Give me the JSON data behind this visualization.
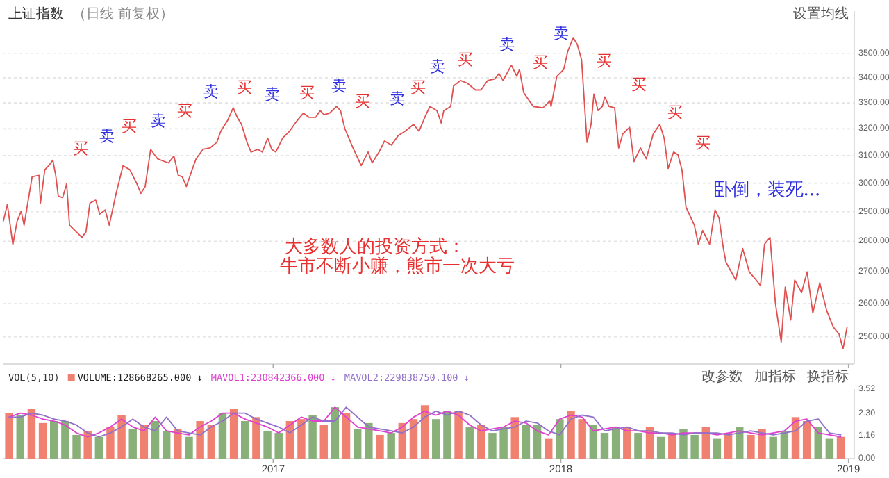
{
  "chart_data": [
    {
      "type": "line",
      "title": "上证指数",
      "subtitle": "（日线 前复权）",
      "log": true,
      "grid": "y",
      "tick_labels": "y",
      "xlim": [
        2016.06,
        2019.02
      ],
      "xticks": [
        2017,
        2018,
        2019
      ],
      "ylim": [
        2420,
        3680
      ],
      "yticks": [
        {
          "value": 2500,
          "label": "2500.00"
        },
        {
          "value": 2600,
          "label": "2600.00"
        },
        {
          "value": 2700,
          "label": "2700.00"
        },
        {
          "value": 2800,
          "label": "2800.00"
        },
        {
          "value": 2900,
          "label": "2900.00"
        },
        {
          "value": 3000,
          "label": "3000.00"
        },
        {
          "value": 3100,
          "label": "3100.00"
        },
        {
          "value": 3200,
          "label": "3200.00"
        },
        {
          "value": 3300,
          "label": "3300.00"
        },
        {
          "value": 3400,
          "label": "3400.00"
        },
        {
          "value": 3500,
          "label": "3500.00"
        }
      ],
      "series": [
        {
          "color": "#e05050",
          "x": [
            2016.062,
            2016.076,
            2016.095,
            2016.11,
            2016.124,
            2016.134,
            2016.162,
            2016.186,
            2016.191,
            2016.206,
            2016.22,
            2016.234,
            2016.244,
            2016.253,
            2016.268,
            2016.282,
            2016.292,
            2016.316,
            2016.335,
            2016.349,
            2016.363,
            2016.383,
            2016.397,
            2016.416,
            2016.43,
            2016.454,
            2016.478,
            2016.502,
            2016.526,
            2016.54,
            2016.555,
            2016.574,
            2016.598,
            2016.622,
            2016.636,
            2016.655,
            2016.67,
            2016.684,
            2016.698,
            2016.718,
            2016.732,
            2016.756,
            2016.78,
            2016.804,
            2016.818,
            2016.842,
            2016.861,
            2016.875,
            2016.89,
            2016.909,
            2016.923,
            2016.947,
            2016.962,
            2016.981,
            2016.995,
            2017.009,
            2017.033,
            2017.057,
            2017.081,
            2017.105,
            2017.124,
            2017.148,
            2017.163,
            2017.177,
            2017.196,
            2017.22,
            2017.234,
            2017.249,
            2017.273,
            2017.306,
            2017.33,
            2017.344,
            2017.368,
            2017.387,
            2017.411,
            2017.435,
            2017.459,
            2017.488,
            2017.507,
            2017.531,
            2017.545,
            2017.569,
            2017.584,
            2017.593,
            2017.617,
            2017.627,
            2017.651,
            2017.675,
            2017.703,
            2017.722,
            2017.746,
            2017.77,
            2017.785,
            2017.799,
            2017.828,
            2017.847,
            2017.856,
            2017.871,
            2017.904,
            2017.938,
            2017.962,
            2017.966,
            2017.986,
            2018.01,
            2018.024,
            2018.043,
            2018.057,
            2018.072,
            2018.091,
            2018.105,
            2018.115,
            2018.129,
            2018.144,
            2018.153,
            2018.167,
            2018.187,
            2018.201,
            2018.215,
            2018.239,
            2018.254,
            2018.277,
            2018.297,
            2018.321,
            2018.344,
            2018.359,
            2018.373,
            2018.392,
            2018.407,
            2018.421,
            2018.435,
            2018.464,
            2018.478,
            2018.493,
            2018.517,
            2018.536,
            2018.55,
            2018.565,
            2018.574,
            2018.608,
            2018.632,
            2018.655,
            2018.679,
            2018.694,
            2018.708,
            2018.727,
            2018.746,
            2018.766,
            2018.78,
            2018.799,
            2018.813,
            2018.837,
            2018.856,
            2018.876,
            2018.9,
            2018.924,
            2018.947,
            2018.967,
            2018.981,
            2018.995
          ],
          "values": [
            2868,
            2925,
            2789,
            2868,
            2902,
            2854,
            3023,
            3028,
            2930,
            3048,
            3063,
            3083,
            3028,
            2954,
            2949,
            2998,
            2854,
            2831,
            2813,
            2831,
            2930,
            2940,
            2892,
            2906,
            2854,
            2964,
            3063,
            3048,
            2998,
            2964,
            2988,
            3123,
            3088,
            3078,
            3073,
            3098,
            3028,
            3023,
            2988,
            3048,
            3088,
            3123,
            3128,
            3149,
            3191,
            3233,
            3281,
            3244,
            3217,
            3149,
            3113,
            3123,
            3113,
            3165,
            3123,
            3113,
            3165,
            3191,
            3228,
            3260,
            3244,
            3244,
            3270,
            3254,
            3260,
            3286,
            3270,
            3201,
            3139,
            3063,
            3113,
            3073,
            3113,
            3154,
            3139,
            3175,
            3191,
            3217,
            3191,
            3254,
            3286,
            3270,
            3222,
            3270,
            3286,
            3367,
            3389,
            3378,
            3351,
            3351,
            3389,
            3395,
            3417,
            3389,
            3451,
            3406,
            3434,
            3340,
            3286,
            3281,
            3308,
            3286,
            3406,
            3434,
            3508,
            3566,
            3537,
            3474,
            3149,
            3217,
            3335,
            3270,
            3286,
            3324,
            3286,
            3281,
            3128,
            3180,
            3206,
            3078,
            3128,
            3088,
            3180,
            3217,
            3165,
            3053,
            3113,
            3103,
            3048,
            2916,
            2854,
            2790,
            2836,
            2790,
            2906,
            2878,
            2776,
            2731,
            2674,
            2776,
            2700,
            2674,
            2656,
            2790,
            2813,
            2600,
            2484,
            2652,
            2550,
            2674,
            2634,
            2700,
            2571,
            2665,
            2579,
            2529,
            2508,
            2464,
            2529
          ]
        }
      ],
      "annotations": [
        "设置均线",
        "买",
        "卖",
        "买",
        "卖",
        "买",
        "卖",
        "买",
        "卖",
        "买",
        "卖",
        "买",
        "卖",
        "买",
        "卖",
        "买",
        "卖",
        "买",
        "卖",
        "买",
        "买",
        "买",
        "买",
        "大多数人的投资方式：",
        "牛市不断小赚，熊市一次大亏",
        "卧倒，装死..."
      ]
    },
    {
      "type": "bar",
      "title": "VOL(5,10)",
      "legend": "top left",
      "xlim": [
        2016.06,
        2019.02
      ],
      "xticks": [
        2017,
        2018,
        2019
      ],
      "ylim": [
        0,
        3.52
      ],
      "yticks": [
        {
          "value": 0,
          "label": "0.00"
        },
        {
          "value": 1.16,
          "label": "1.16"
        },
        {
          "value": 2.3,
          "label": "2.30"
        },
        {
          "value": 3.52,
          "label": "3.52"
        }
      ],
      "x": [
        2016.082,
        2016.121,
        2016.16,
        2016.199,
        2016.238,
        2016.277,
        2016.316,
        2016.355,
        2016.394,
        2016.434,
        2016.473,
        2016.512,
        2016.551,
        2016.59,
        2016.629,
        2016.668,
        2016.707,
        2016.746,
        2016.785,
        2016.824,
        2016.863,
        2016.902,
        2016.941,
        2016.98,
        2017.019,
        2017.058,
        2017.098,
        2017.137,
        2017.176,
        2017.215,
        2017.254,
        2017.293,
        2017.332,
        2017.371,
        2017.41,
        2017.449,
        2017.488,
        2017.527,
        2017.566,
        2017.605,
        2017.644,
        2017.683,
        2017.723,
        2017.762,
        2017.801,
        2017.84,
        2017.879,
        2017.918,
        2017.957,
        2017.996,
        2018.035,
        2018.074,
        2018.113,
        2018.152,
        2018.191,
        2018.23,
        2018.269,
        2018.309,
        2018.348,
        2018.387,
        2018.426,
        2018.465,
        2018.504,
        2018.543,
        2018.582,
        2018.621,
        2018.66,
        2018.699,
        2018.738,
        2018.777,
        2018.816,
        2018.855,
        2018.895,
        2018.934,
        2018.973
      ],
      "series": [
        {
          "name": "VOLUME:128668265.000 ↓",
          "color": "#f08070",
          "colors": [
            "#f08070",
            "#88b078",
            "#f08070",
            "#f08070",
            "#88b078",
            "#88b078",
            "#88b078",
            "#f08070",
            "#88b078",
            "#f08070",
            "#f08070",
            "#88b078",
            "#f08070",
            "#88b078",
            "#88b078",
            "#f08070",
            "#88b078",
            "#f08070",
            "#f08070",
            "#88b078",
            "#f08070",
            "#88b078",
            "#f08070",
            "#88b078",
            "#88b078",
            "#f08070",
            "#f08070",
            "#88b078",
            "#f08070",
            "#88b078",
            "#f08070",
            "#88b078",
            "#88b078",
            "#f08070",
            "#88b078",
            "#f08070",
            "#f08070",
            "#f08070",
            "#88b078",
            "#88b078",
            "#f08070",
            "#88b078",
            "#f08070",
            "#88b078",
            "#88b078",
            "#f08070",
            "#88b078",
            "#88b078",
            "#f08070",
            "#88b078",
            "#f08070",
            "#f08070",
            "#88b078",
            "#88b078",
            "#88b078",
            "#f08070",
            "#88b078",
            "#f08070",
            "#88b078",
            "#f08070",
            "#88b078",
            "#88b078",
            "#f08070",
            "#88b078",
            "#f08070",
            "#88b078",
            "#f08070",
            "#f08070",
            "#88b078",
            "#88b078",
            "#f08070",
            "#f08070",
            "#88b078",
            "#88b078",
            "#f08070"
          ],
          "values": [
            2.3,
            2.2,
            2.5,
            1.8,
            1.9,
            1.9,
            1.2,
            1.4,
            1.1,
            1.6,
            2.2,
            1.5,
            1.7,
            1.9,
            1.4,
            1.5,
            1.1,
            1.9,
            1.7,
            2.3,
            2.5,
            1.9,
            2.1,
            1.4,
            1.3,
            1.9,
            2.0,
            2.2,
            1.7,
            2.6,
            2.3,
            1.5,
            1.8,
            1.2,
            1.3,
            1.8,
            2.0,
            2.7,
            2.0,
            2.4,
            2.4,
            1.6,
            1.7,
            1.3,
            1.6,
            2.1,
            1.7,
            1.7,
            1.0,
            2.0,
            2.4,
            2.0,
            1.7,
            1.3,
            1.6,
            1.6,
            1.3,
            1.6,
            1.1,
            1.2,
            1.5,
            1.2,
            1.6,
            1.0,
            1.3,
            1.6,
            1.2,
            1.5,
            1.1,
            1.4,
            2.1,
            1.9,
            1.6,
            1.0,
            1.1
          ]
        },
        {
          "type": "line",
          "name": "MAVOL1:230842366.000 ↓",
          "color": "#e040d0",
          "values": [
            2.1,
            2.3,
            2.2,
            2.0,
            1.9,
            1.7,
            1.3,
            1.1,
            1.3,
            1.6,
            2.0,
            1.6,
            1.4,
            2.1,
            1.4,
            1.3,
            1.2,
            1.6,
            1.9,
            2.3,
            2.3,
            2.0,
            1.8,
            1.6,
            1.3,
            1.7,
            2.1,
            1.9,
            1.9,
            2.6,
            2.1,
            1.6,
            1.5,
            1.4,
            1.3,
            1.6,
            2.1,
            2.4,
            2.2,
            2.4,
            2.2,
            1.7,
            1.4,
            1.5,
            1.6,
            1.9,
            1.8,
            1.4,
            1.2,
            2.0,
            2.2,
            2.1,
            1.4,
            1.5,
            1.6,
            1.4,
            1.4,
            1.3,
            1.3,
            1.2,
            1.3,
            1.3,
            1.3,
            1.2,
            1.3,
            1.4,
            1.3,
            1.2,
            1.3,
            1.4,
            1.9,
            2.0,
            1.3,
            1.2,
            1.1
          ]
        },
        {
          "type": "line",
          "name": "MAVOL2:229838750.100 ↓",
          "color": "#9070c8",
          "values": [
            2.1,
            2.1,
            2.3,
            2.2,
            2.0,
            1.9,
            1.7,
            1.3,
            1.1,
            1.3,
            1.6,
            2.0,
            1.6,
            1.4,
            2.1,
            1.4,
            1.3,
            1.2,
            1.6,
            1.9,
            2.3,
            2.3,
            2.0,
            1.8,
            1.6,
            1.3,
            1.7,
            2.1,
            1.9,
            1.9,
            2.6,
            2.1,
            1.6,
            1.5,
            1.4,
            1.3,
            1.6,
            2.1,
            2.4,
            2.2,
            2.4,
            2.2,
            1.7,
            1.4,
            1.5,
            1.6,
            1.9,
            1.8,
            1.4,
            1.2,
            2.0,
            2.2,
            2.1,
            1.4,
            1.5,
            1.6,
            1.4,
            1.4,
            1.3,
            1.3,
            1.2,
            1.3,
            1.3,
            1.3,
            1.2,
            1.3,
            1.4,
            1.3,
            1.2,
            1.3,
            1.4,
            1.9,
            2.0,
            1.3,
            1.2
          ]
        }
      ],
      "annotations": [
        "改参数",
        "加指标",
        "换指标"
      ]
    }
  ]
}
